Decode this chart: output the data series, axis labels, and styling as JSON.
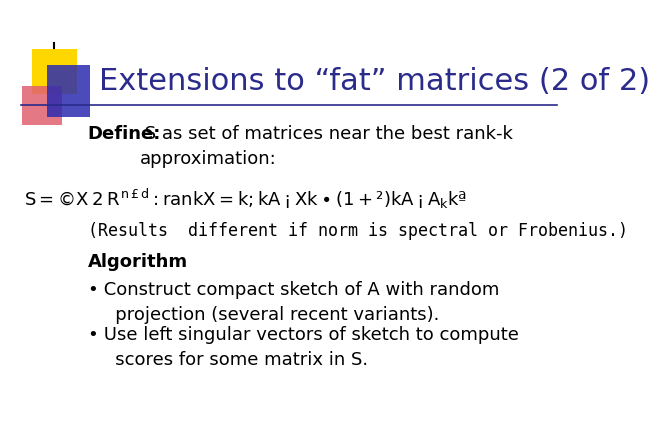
{
  "title": "Extensions to “fat” matrices (2 of 2)",
  "title_color": "#2B2B8C",
  "title_fontsize": 22,
  "bg_color": "#FFFFFF",
  "define_bold": "Define:",
  "define_rest": " S as set of matrices near the best rank-k\napproximation:",
  "formula": "$S = \\{X \\in R^{n\\times d} : \\mathrm{rank}X = k; \\|A - X\\| \\leq (1+\\epsilon)\\|A - A_k\\|\\}$",
  "results_text": "(Results  different if norm is spectral or Frobenius.)",
  "algorithm_bold": "Algorithm",
  "algorithm_colon": ":",
  "bullet1_dot": "•",
  "bullet1_text": " Construct compact sketch of A with random\n   projection (several recent variants).",
  "bullet2_dot": "•",
  "bullet2_text": " Use left singular vectors of sketch to compute\n   scores for some matrix in S.",
  "decoration_yellow": "#FFD700",
  "decoration_blue": "#2B2BB0",
  "decoration_red": "#E06070",
  "line_color": "#2B2B8C",
  "text_color": "#000000",
  "body_font": "DejaVu Sans",
  "body_fontsize": 13,
  "formula_fontsize": 13,
  "results_font": "DejaVu Sans Mono",
  "results_fontsize": 12
}
